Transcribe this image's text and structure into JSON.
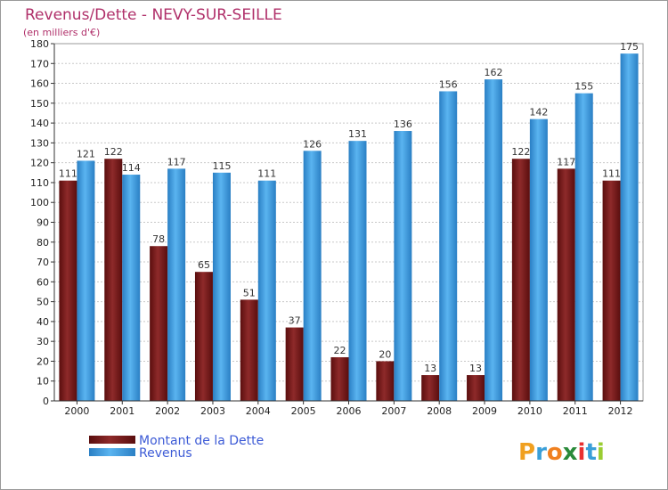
{
  "chart_data": {
    "type": "bar",
    "title": "Revenus/Dette - NEVY-SUR-SEILLE",
    "subtitle": "(en milliers d'€)",
    "categories": [
      "2000",
      "2001",
      "2002",
      "2003",
      "2004",
      "2005",
      "2006",
      "2007",
      "2008",
      "2009",
      "2010",
      "2011",
      "2012"
    ],
    "series": [
      {
        "name": "Montant de la Dette",
        "color": "#7a1d1d",
        "values": [
          111,
          122,
          78,
          65,
          51,
          37,
          22,
          20,
          13,
          13,
          122,
          117,
          111
        ]
      },
      {
        "name": "Revenus",
        "color": "#3d9de0",
        "values": [
          121,
          114,
          117,
          115,
          111,
          126,
          131,
          136,
          156,
          162,
          142,
          155,
          175
        ]
      }
    ],
    "ylim": [
      0,
      180
    ],
    "ytick_step": 10,
    "xlabel": "",
    "ylabel": "",
    "grid": true
  },
  "legend": {
    "debt_label": "Montant de la Dette",
    "revenue_label": "Revenus"
  },
  "logo": {
    "text": "Proxiti",
    "letters": [
      "P",
      "r",
      "o",
      "x",
      "i",
      "t",
      "i"
    ],
    "colors": [
      "#f0a020",
      "#3a9fd8",
      "#f08020",
      "#2a8a3a",
      "#e83030",
      "#3a9fd8",
      "#9acd32"
    ]
  }
}
